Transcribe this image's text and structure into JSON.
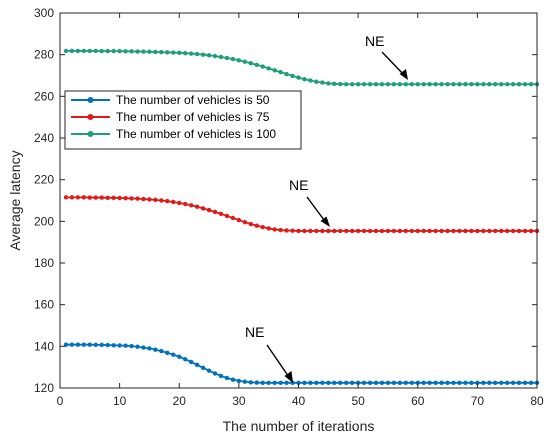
{
  "chart_data": {
    "type": "line",
    "title": "",
    "xlabel": "The number of iterations",
    "ylabel": "Average latency",
    "xlim": [
      0,
      80
    ],
    "ylim": [
      120,
      300
    ],
    "xticks": [
      0,
      10,
      20,
      30,
      40,
      50,
      60,
      70,
      80
    ],
    "yticks": [
      120,
      140,
      160,
      180,
      200,
      220,
      240,
      260,
      280,
      300
    ],
    "grid": false,
    "legend_position": "upper-left",
    "series": [
      {
        "name": "The number of vehicles is 50",
        "color": "#0072BD",
        "x": [
          1,
          2,
          3,
          4,
          5,
          6,
          7,
          8,
          9,
          10,
          11,
          12,
          13,
          14,
          15,
          16,
          17,
          18,
          19,
          20,
          21,
          22,
          23,
          24,
          25,
          26,
          27,
          28,
          29,
          30,
          31,
          32,
          33,
          34,
          35,
          36,
          37,
          38,
          39,
          40,
          41,
          42,
          43,
          44,
          45,
          46,
          47,
          48,
          49,
          50,
          51,
          52,
          53,
          54,
          55,
          56,
          57,
          58,
          59,
          60,
          61,
          62,
          63,
          64,
          65,
          66,
          67,
          68,
          69,
          70,
          71,
          72,
          73,
          74,
          75,
          76,
          77,
          78,
          79,
          80
        ],
        "y": [
          140.8,
          140.8,
          140.8,
          140.8,
          140.8,
          140.7,
          140.7,
          140.6,
          140.5,
          140.4,
          140.3,
          140.1,
          139.8,
          139.4,
          139.0,
          138.4,
          137.7,
          136.9,
          136.0,
          135.0,
          133.8,
          132.5,
          131.1,
          129.7,
          128.3,
          127.0,
          125.8,
          124.8,
          124.0,
          123.4,
          123.0,
          122.7,
          122.6,
          122.5,
          122.5,
          122.5,
          122.5,
          122.5,
          122.5,
          122.5,
          122.5,
          122.5,
          122.5,
          122.5,
          122.5,
          122.5,
          122.5,
          122.5,
          122.5,
          122.5,
          122.5,
          122.5,
          122.5,
          122.5,
          122.5,
          122.5,
          122.5,
          122.5,
          122.5,
          122.5,
          122.5,
          122.5,
          122.5,
          122.5,
          122.5,
          122.5,
          122.5,
          122.5,
          122.5,
          122.5,
          122.5,
          122.5,
          122.5,
          122.5,
          122.5,
          122.5,
          122.5,
          122.5,
          122.5,
          122.5
        ]
      },
      {
        "name": "The number of vehicles is 75",
        "color": "#E01A1A",
        "x": [
          1,
          2,
          3,
          4,
          5,
          6,
          7,
          8,
          9,
          10,
          11,
          12,
          13,
          14,
          15,
          16,
          17,
          18,
          19,
          20,
          21,
          22,
          23,
          24,
          25,
          26,
          27,
          28,
          29,
          30,
          31,
          32,
          33,
          34,
          35,
          36,
          37,
          38,
          39,
          40,
          41,
          42,
          43,
          44,
          45,
          46,
          47,
          48,
          49,
          50,
          51,
          52,
          53,
          54,
          55,
          56,
          57,
          58,
          59,
          60,
          61,
          62,
          63,
          64,
          65,
          66,
          67,
          68,
          69,
          70,
          71,
          72,
          73,
          74,
          75,
          76,
          77,
          78,
          79,
          80
        ],
        "y": [
          211.5,
          211.5,
          211.5,
          211.5,
          211.4,
          211.4,
          211.4,
          211.3,
          211.3,
          211.2,
          211.1,
          211.0,
          210.9,
          210.7,
          210.5,
          210.3,
          210.0,
          209.7,
          209.3,
          208.8,
          208.3,
          207.7,
          207.0,
          206.2,
          205.4,
          204.5,
          203.6,
          202.6,
          201.6,
          200.6,
          199.6,
          198.7,
          197.9,
          197.2,
          196.6,
          196.1,
          195.8,
          195.6,
          195.5,
          195.4,
          195.4,
          195.4,
          195.4,
          195.4,
          195.4,
          195.4,
          195.4,
          195.4,
          195.4,
          195.4,
          195.4,
          195.4,
          195.4,
          195.4,
          195.4,
          195.4,
          195.4,
          195.4,
          195.4,
          195.4,
          195.4,
          195.4,
          195.4,
          195.4,
          195.4,
          195.4,
          195.4,
          195.4,
          195.4,
          195.4,
          195.4,
          195.4,
          195.4,
          195.4,
          195.4,
          195.4,
          195.4,
          195.4,
          195.4,
          195.4
        ]
      },
      {
        "name": "The number of vehicles is 100",
        "color": "#1E9E7A",
        "x": [
          1,
          2,
          3,
          4,
          5,
          6,
          7,
          8,
          9,
          10,
          11,
          12,
          13,
          14,
          15,
          16,
          17,
          18,
          19,
          20,
          21,
          22,
          23,
          24,
          25,
          26,
          27,
          28,
          29,
          30,
          31,
          32,
          33,
          34,
          35,
          36,
          37,
          38,
          39,
          40,
          41,
          42,
          43,
          44,
          45,
          46,
          47,
          48,
          49,
          50,
          51,
          52,
          53,
          54,
          55,
          56,
          57,
          58,
          59,
          60,
          61,
          62,
          63,
          64,
          65,
          66,
          67,
          68,
          69,
          70,
          71,
          72,
          73,
          74,
          75,
          76,
          77,
          78,
          79,
          80
        ],
        "y": [
          281.8,
          281.8,
          281.8,
          281.8,
          281.8,
          281.8,
          281.7,
          281.7,
          281.7,
          281.7,
          281.6,
          281.6,
          281.5,
          281.5,
          281.4,
          281.3,
          281.2,
          281.1,
          281.0,
          280.9,
          280.7,
          280.5,
          280.3,
          280.0,
          279.7,
          279.3,
          278.9,
          278.4,
          277.9,
          277.3,
          276.6,
          275.9,
          275.1,
          274.3,
          273.4,
          272.5,
          271.6,
          270.7,
          269.8,
          269.0,
          268.2,
          267.6,
          267.0,
          266.6,
          266.2,
          266.0,
          265.9,
          265.8,
          265.8,
          265.8,
          265.8,
          265.8,
          265.8,
          265.8,
          265.8,
          265.8,
          265.8,
          265.8,
          265.8,
          265.8,
          265.8,
          265.8,
          265.8,
          265.8,
          265.8,
          265.8,
          265.8,
          265.8,
          265.8,
          265.8,
          265.8,
          265.8,
          265.8,
          265.8,
          265.8,
          265.8,
          265.8,
          265.8,
          265.8,
          265.8
        ]
      }
    ],
    "annotations": [
      {
        "text": "NE",
        "target_x": 37,
        "target_y": 122.5,
        "series": "The number of vehicles is 50"
      },
      {
        "text": "NE",
        "target_x": 45,
        "target_y": 195.4,
        "series": "The number of vehicles is 75"
      },
      {
        "text": "NE",
        "target_x": 58,
        "target_y": 265.8,
        "series": "The number of vehicles is 100"
      }
    ]
  }
}
